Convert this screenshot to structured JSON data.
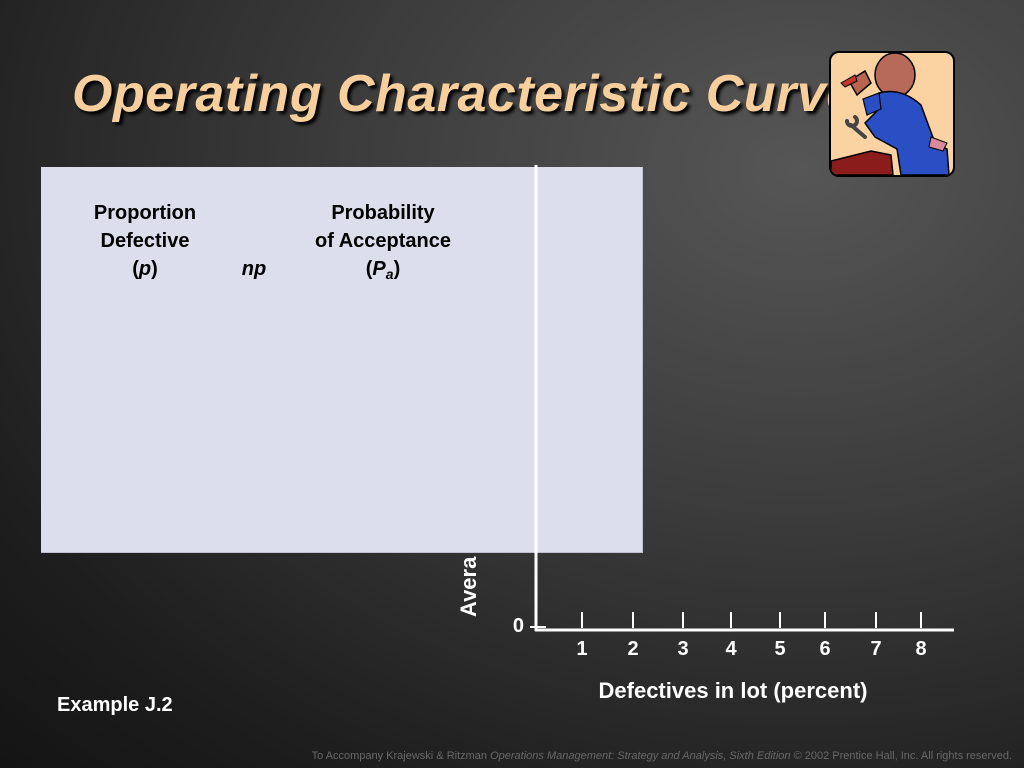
{
  "slide": {
    "title": "Operating Characteristic Curve",
    "example_label": "Example J.2",
    "footer": {
      "prefix": "To Accompany Krajewski & Ritzman ",
      "book_title": "Operations Management: Strategy and Analysis, Sixth Edition",
      "suffix": " © 2002 Prentice Hall, Inc. All rights reserved."
    },
    "clipart_icon": "worker-with-wrench-icon"
  },
  "table": {
    "col_proportion": {
      "line1": "Proportion",
      "line2": "Defective",
      "open": "(",
      "symbol": "p",
      "close": ")"
    },
    "col_np": {
      "label": "np"
    },
    "col_probability": {
      "line1": "Probability",
      "line2": "of Acceptance",
      "open": "(",
      "symbol": "P",
      "subscript": "a",
      "close": ")"
    }
  },
  "chart_data": {
    "type": "line",
    "xlabel": "Defectives in lot (percent)",
    "ylabel_visible": "Avera",
    "x_ticks": [
      "1",
      "2",
      "3",
      "4",
      "5",
      "6",
      "7",
      "8"
    ],
    "y_ticks": [
      "0"
    ],
    "xlim": [
      0,
      8
    ],
    "series": []
  },
  "colors": {
    "title": "#f7cf9d",
    "panel": "#dcdeec",
    "axis": "#ffffff",
    "clipart_bg": "#fbd3a2"
  }
}
